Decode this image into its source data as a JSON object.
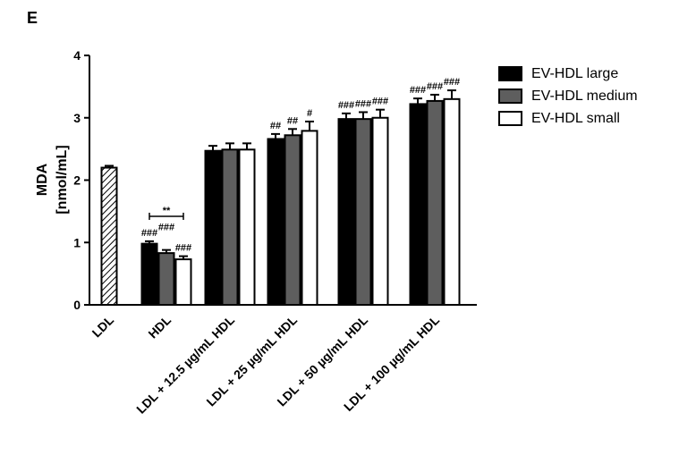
{
  "panel_label": "E",
  "chart_data": {
    "type": "bar",
    "ylabel_line1": "MDA",
    "ylabel_line2": "[nmol/mL]",
    "ylim": [
      0,
      4
    ],
    "yticks": [
      "0",
      "1",
      "2",
      "3",
      "4"
    ],
    "groups": [
      {
        "label": "LDL",
        "bars": [
          {
            "series": "LDL",
            "value": 2.2,
            "err": 0.03,
            "annotation": ""
          }
        ]
      },
      {
        "label": "HDL",
        "bars": [
          {
            "series": "EV-HDL large",
            "value": 0.98,
            "err": 0.04,
            "annotation": "###"
          },
          {
            "series": "EV-HDL medium",
            "value": 0.83,
            "err": 0.05,
            "annotation": "###"
          },
          {
            "series": "EV-HDL small",
            "value": 0.73,
            "err": 0.05,
            "annotation": "###"
          }
        ]
      },
      {
        "label": "LDL + 12.5 µg/mL HDL",
        "bars": [
          {
            "series": "EV-HDL large",
            "value": 2.47,
            "err": 0.08,
            "annotation": ""
          },
          {
            "series": "EV-HDL medium",
            "value": 2.49,
            "err": 0.1,
            "annotation": ""
          },
          {
            "series": "EV-HDL small",
            "value": 2.49,
            "err": 0.1,
            "annotation": ""
          }
        ]
      },
      {
        "label": "LDL + 25 µg/mL HDL",
        "bars": [
          {
            "series": "EV-HDL large",
            "value": 2.66,
            "err": 0.08,
            "annotation": "##"
          },
          {
            "series": "EV-HDL medium",
            "value": 2.72,
            "err": 0.1,
            "annotation": "##"
          },
          {
            "series": "EV-HDL small",
            "value": 2.79,
            "err": 0.15,
            "annotation": "#"
          }
        ]
      },
      {
        "label": "LDL + 50 µg/mL HDL",
        "bars": [
          {
            "series": "EV-HDL large",
            "value": 2.98,
            "err": 0.09,
            "annotation": "###"
          },
          {
            "series": "EV-HDL medium",
            "value": 2.98,
            "err": 0.11,
            "annotation": "###"
          },
          {
            "series": "EV-HDL small",
            "value": 3.0,
            "err": 0.13,
            "annotation": "###"
          }
        ]
      },
      {
        "label": "LDL + 100 µg/mL HDL",
        "bars": [
          {
            "series": "EV-HDL large",
            "value": 3.22,
            "err": 0.09,
            "annotation": "###"
          },
          {
            "series": "EV-HDL medium",
            "value": 3.27,
            "err": 0.1,
            "annotation": "###"
          },
          {
            "series": "EV-HDL small",
            "value": 3.3,
            "err": 0.14,
            "annotation": "###"
          }
        ]
      }
    ],
    "significance": {
      "group": "HDL",
      "from_series": "EV-HDL large",
      "to_series": "EV-HDL small",
      "label": "**",
      "y_value": 1.42
    },
    "legend": [
      {
        "name": "EV-HDL large",
        "color": "#000000"
      },
      {
        "name": "EV-HDL medium",
        "color": "#5e5e5e"
      },
      {
        "name": "EV-HDL small",
        "color": "#ffffff"
      }
    ],
    "legend_position": "top-right",
    "ldl_pattern": "diagonal-hatch",
    "grid": false
  }
}
